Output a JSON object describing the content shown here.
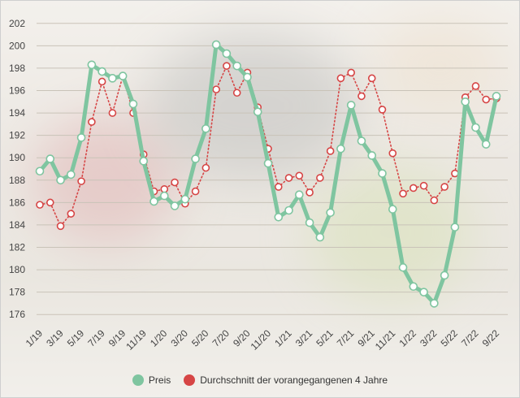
{
  "chart_data": {
    "type": "line",
    "title": "",
    "xlabel": "",
    "ylabel": "",
    "ylim": [
      175,
      203
    ],
    "yticks": [
      176,
      178,
      180,
      182,
      184,
      186,
      188,
      190,
      192,
      194,
      196,
      198,
      200,
      202
    ],
    "x": [
      "1/19",
      "2/19",
      "3/19",
      "4/19",
      "5/19",
      "6/19",
      "7/19",
      "8/19",
      "9/19",
      "10/19",
      "11/19",
      "12/19",
      "1/20",
      "2/20",
      "3/20",
      "4/20",
      "5/20",
      "6/20",
      "7/20",
      "8/20",
      "9/20",
      "10/20",
      "11/20",
      "12/20",
      "1/21",
      "2/21",
      "3/21",
      "4/21",
      "5/21",
      "6/21",
      "7/21",
      "8/21",
      "9/21",
      "10/21",
      "11/21",
      "12/21",
      "1/22",
      "2/22",
      "3/22",
      "4/22",
      "5/22",
      "6/22",
      "7/22",
      "8/22",
      "9/22"
    ],
    "xtick_labels": [
      "1/19",
      "3/19",
      "5/19",
      "7/19",
      "9/19",
      "11/19",
      "1/20",
      "3/20",
      "5/20",
      "7/20",
      "9/20",
      "11/20",
      "1/21",
      "3/21",
      "5/21",
      "7/21",
      "9/21",
      "11/21",
      "1/22",
      "3/22",
      "5/22",
      "7/22",
      "9/22"
    ],
    "grid": true,
    "legend_position": "bottom-center",
    "series": [
      {
        "name": "Preis",
        "color": "#7fc5a0",
        "style": "solid",
        "values": [
          188.8,
          189.9,
          188.0,
          188.5,
          191.8,
          198.3,
          197.7,
          197.1,
          197.3,
          194.8,
          189.7,
          186.1,
          186.6,
          185.7,
          186.3,
          189.9,
          192.6,
          200.1,
          199.3,
          198.2,
          197.2,
          194.1,
          189.5,
          184.7,
          185.3,
          186.7,
          184.2,
          182.9,
          185.1,
          190.8,
          194.7,
          191.5,
          190.2,
          188.6,
          185.4,
          180.2,
          178.5,
          178.0,
          177.0,
          179.5,
          183.8,
          195.0,
          192.7,
          191.2,
          195.5
        ]
      },
      {
        "name": "Durchschnitt der vorangegangenen 4 Jahre",
        "color": "#d64545",
        "style": "dotted",
        "values": [
          185.8,
          186.0,
          183.9,
          185.0,
          187.9,
          193.2,
          196.8,
          194.0,
          197.3,
          194.0,
          190.3,
          187.0,
          187.2,
          187.8,
          185.9,
          187.0,
          189.1,
          196.1,
          198.2,
          195.8,
          197.6,
          194.5,
          190.8,
          187.4,
          188.2,
          188.4,
          186.9,
          188.2,
          190.6,
          197.1,
          197.6,
          195.5,
          197.1,
          194.3,
          190.4,
          186.8,
          187.3,
          187.5,
          186.2,
          187.4,
          188.6,
          195.4,
          196.4,
          195.2,
          195.3
        ]
      }
    ]
  },
  "colors": {
    "grid": "#c9c3b8",
    "tick_text": "#444444"
  }
}
